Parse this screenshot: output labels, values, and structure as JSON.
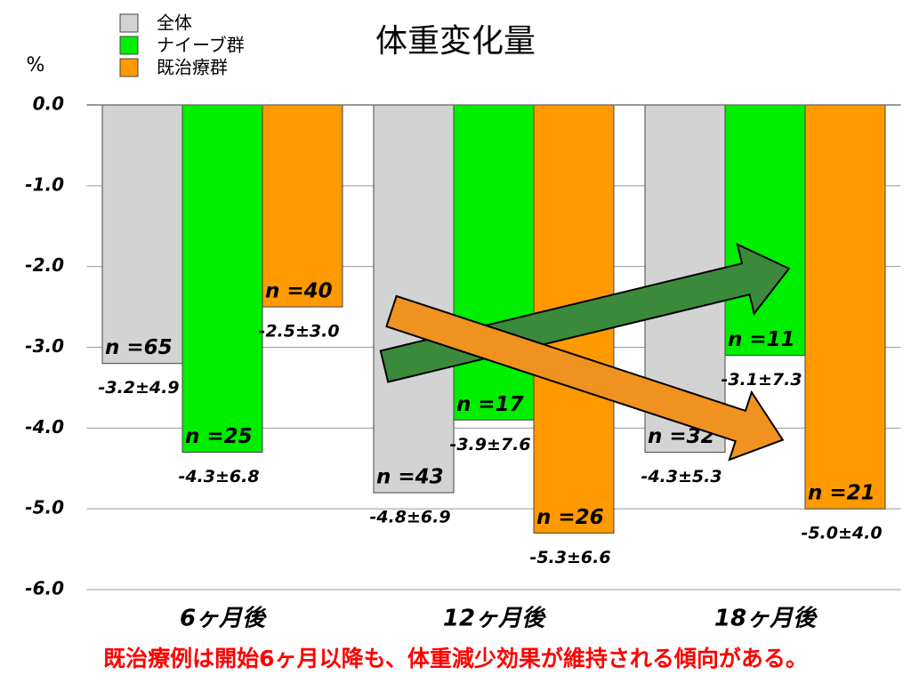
{
  "chart_data": {
    "type": "bar",
    "title": "体重変化量",
    "y_label": "%",
    "categories": [
      "6ヶ月後",
      "12ヶ月後",
      "18ヶ月後"
    ],
    "series": [
      {
        "name": "全体",
        "color": "#d3d3d3",
        "values": [
          -3.2,
          -4.8,
          -4.3
        ],
        "value_labels": [
          "-3.2±4.9",
          "-4.8±6.9",
          "-4.3±5.3"
        ],
        "n_labels": [
          "n =65",
          "n =43",
          "n =32"
        ]
      },
      {
        "name": "ナイーブ群",
        "color": "#00ee00",
        "values": [
          -4.3,
          -3.9,
          -3.1
        ],
        "value_labels": [
          "-4.3±6.8",
          "-3.9±7.6",
          "-3.1±7.3"
        ],
        "n_labels": [
          "n =25",
          "n =17",
          "n =11"
        ]
      },
      {
        "name": "既治療群",
        "color": "#ff9900",
        "values": [
          -2.5,
          -5.3,
          -5.0
        ],
        "value_labels": [
          "-2.5±3.0",
          "-5.3±6.6",
          "-5.0±4.0"
        ],
        "n_labels": [
          "n =40",
          "n =26",
          "n =21"
        ]
      }
    ],
    "ylim": [
      -6,
      0
    ],
    "yticks": [
      {
        "value": 0,
        "label": "0.0"
      },
      {
        "value": -1,
        "label": "-1.0"
      },
      {
        "value": -2,
        "label": "-2.0"
      },
      {
        "value": -3,
        "label": "-3.0"
      },
      {
        "value": -4,
        "label": "-4.0"
      },
      {
        "value": -5,
        "label": "-5.0"
      },
      {
        "value": -6,
        "label": "-6.0"
      }
    ],
    "grid": true,
    "footnote": "既治療例は開始6ヶ月以降も、体重減少効果が維持される傾向がある。"
  }
}
